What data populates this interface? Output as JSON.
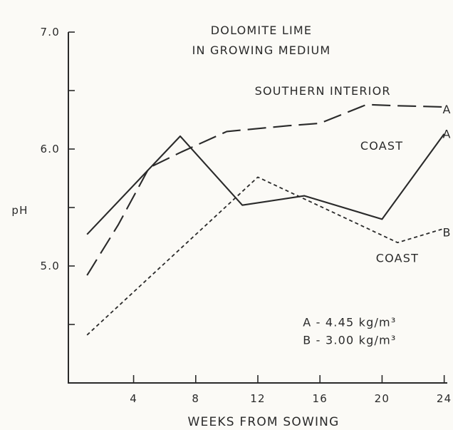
{
  "chart_data": {
    "type": "line",
    "title": "DOLOMITE LIME\nIN GROWING MEDIUM",
    "title_lines": [
      "DOLOMITE LIME",
      "IN GROWING MEDIUM"
    ],
    "xlabel": "WEEKS FROM SOWING",
    "ylabel": "pH",
    "xlim": [
      -0.2,
      24.2
    ],
    "ylim": [
      4.0,
      7.0
    ],
    "x_ticks": [
      4,
      8,
      12,
      16,
      20,
      24
    ],
    "y_ticks": [
      4.5,
      5.0,
      5.5,
      6.0,
      6.5,
      7.0
    ],
    "y_tick_labels": [
      {
        "value": 5.0,
        "label": "5.0"
      },
      {
        "value": 6.0,
        "label": "6.0"
      },
      {
        "value": 7.0,
        "label": "7.0"
      }
    ],
    "grid": false,
    "series": [
      {
        "name": "SOUTHERN INTERIOR",
        "end_label": "A",
        "style": "long-dash",
        "color": "#2a2a2a",
        "x": [
          1,
          3,
          5,
          7,
          10,
          14,
          16,
          19,
          21,
          24
        ],
        "y": [
          4.92,
          5.35,
          5.84,
          5.97,
          6.15,
          6.2,
          6.22,
          6.38,
          6.37,
          6.36
        ]
      },
      {
        "name": "COAST",
        "end_label": "A",
        "style": "solid",
        "color": "#2a2a2a",
        "x": [
          1,
          7,
          11,
          15,
          20,
          24
        ],
        "y": [
          5.27,
          6.11,
          5.52,
          5.6,
          5.4,
          6.13
        ]
      },
      {
        "name": "COAST",
        "end_label": "B",
        "style": "short-dash",
        "color": "#2a2a2a",
        "x": [
          1,
          12,
          21,
          24
        ],
        "y": [
          4.41,
          5.76,
          5.2,
          5.32
        ]
      }
    ],
    "annotations": [
      {
        "text": "SOUTHERN INTERIOR",
        "x": 11.8,
        "y": 6.5
      },
      {
        "text": "A",
        "x": 23.9,
        "y": 6.34
      },
      {
        "text": "COAST",
        "x": 18.6,
        "y": 6.03
      },
      {
        "text": "A",
        "x": 23.9,
        "y": 6.13
      },
      {
        "text": "B",
        "x": 23.9,
        "y": 5.29
      },
      {
        "text": "COAST",
        "x": 19.6,
        "y": 5.07
      },
      {
        "text": "A - 4.45 kg/m³",
        "x": 14.9,
        "y": 4.52
      },
      {
        "text": "B - 3.00 kg/m³",
        "x": 14.9,
        "y": 4.37
      }
    ]
  }
}
